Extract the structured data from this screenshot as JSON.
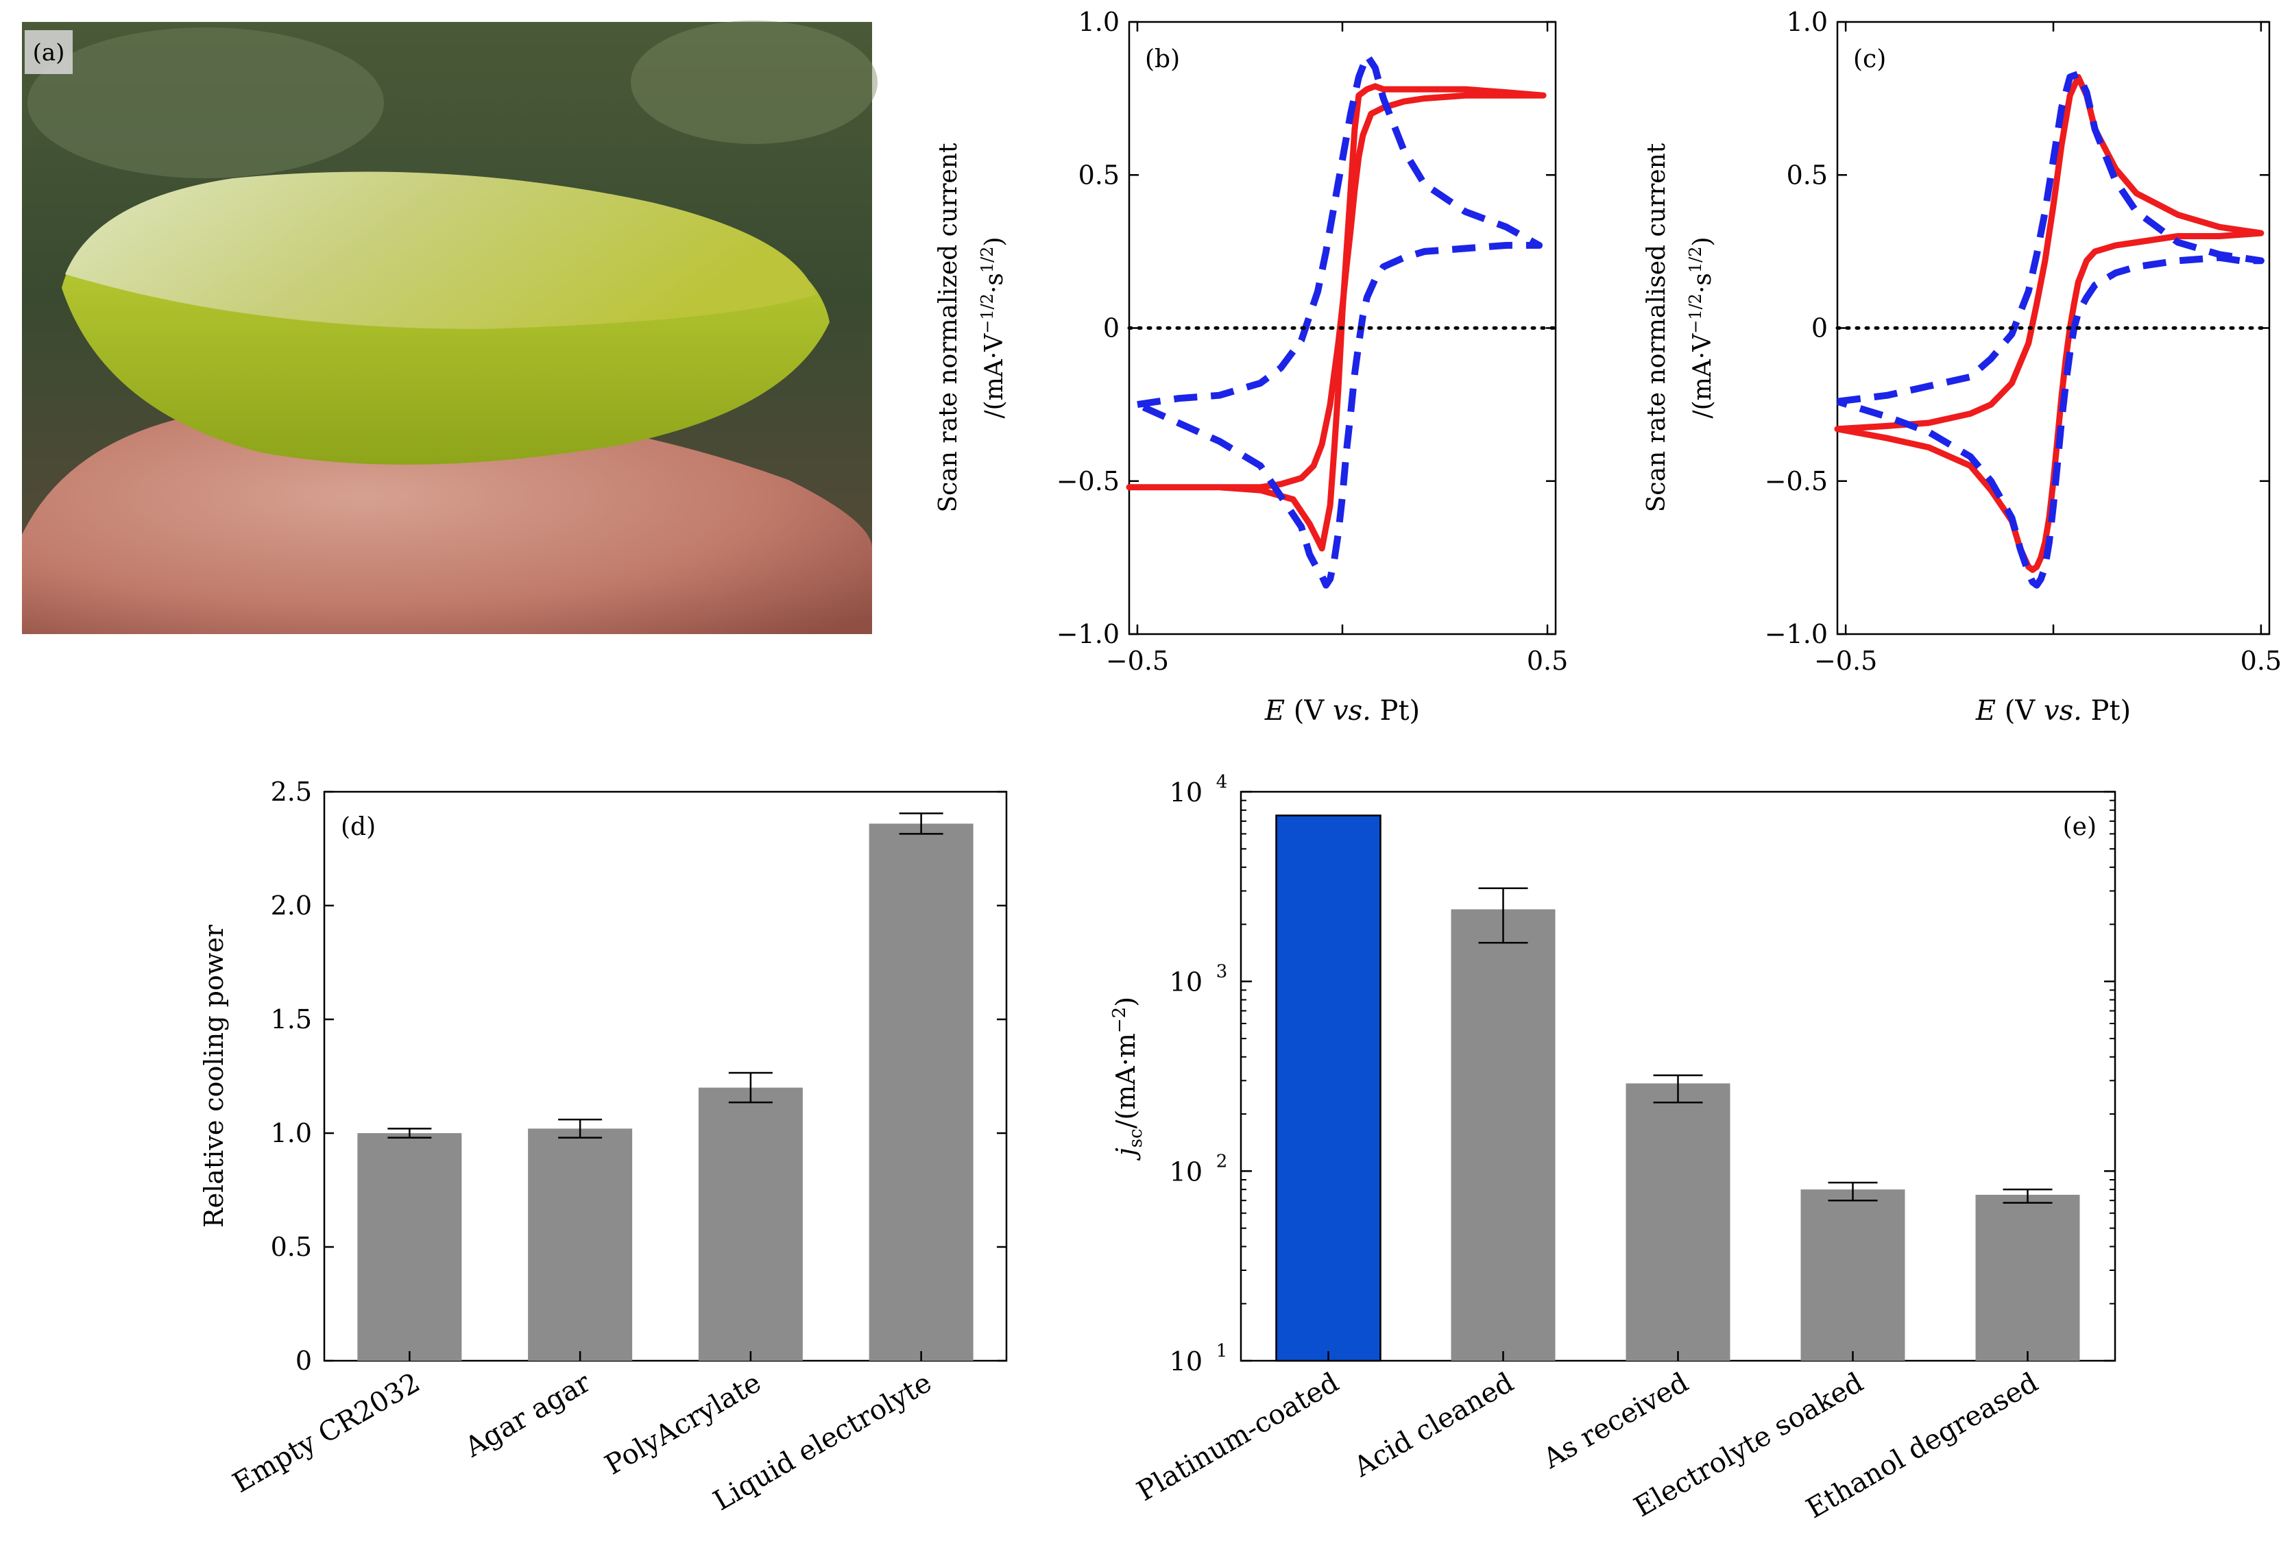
{
  "figure": {
    "panel_a": {
      "label": "(a)",
      "description": "photograph of a yellow-green gel electrolyte disc on a fingertip"
    },
    "colors": {
      "red": "#ee1c1c",
      "blue": "#1c24e8",
      "gray": "#8c8c8c",
      "platinum": "#0a4fd0"
    }
  },
  "chart_data": [
    {
      "panel": "(b)",
      "type": "line",
      "ylabel_line1": "Scan rate normalized current",
      "ylabel_line2": "/(mA·V",
      "ylabel_sup1": "−1/2",
      "ylabel_mid": "·s",
      "ylabel_sup2": "1/2",
      "ylabel_end": ")",
      "xlabel_var": "E",
      "xlabel_a": " (V ",
      "xlabel_vs": "vs.",
      "xlabel_b": " Pt)",
      "xlim": [
        -0.52,
        0.52
      ],
      "ylim": [
        -1.0,
        1.0
      ],
      "xticks": [
        -0.5,
        0,
        0.5
      ],
      "xticklabels": [
        "−0.5",
        "",
        "0.5"
      ],
      "yticks": [
        -1.0,
        -0.5,
        0,
        0.5,
        1.0
      ],
      "yticklabels": [
        "−1.0",
        "−0.5",
        "0",
        "0.5",
        "1.0"
      ],
      "series": [
        {
          "name": "red",
          "style": "solid",
          "color": "#ee1c1c",
          "x": [
            -0.52,
            -0.4,
            -0.3,
            -0.2,
            -0.15,
            -0.1,
            -0.07,
            -0.05,
            -0.03,
            -0.02,
            -0.01,
            0.0,
            0.01,
            0.02,
            0.03,
            0.04,
            0.05,
            0.07,
            0.1,
            0.15,
            0.2,
            0.3,
            0.4,
            0.49,
            0.4,
            0.3,
            0.2,
            0.15,
            0.12,
            0.1,
            0.08,
            0.06,
            0.04,
            0.03,
            0.02,
            0.01,
            0.0,
            -0.01,
            -0.02,
            -0.03,
            -0.05,
            -0.08,
            -0.12,
            -0.2,
            -0.3,
            -0.4,
            -0.52
          ],
          "y": [
            -0.52,
            -0.52,
            -0.52,
            -0.52,
            -0.51,
            -0.49,
            -0.45,
            -0.38,
            -0.25,
            -0.15,
            -0.05,
            0.07,
            0.2,
            0.32,
            0.45,
            0.56,
            0.63,
            0.7,
            0.72,
            0.74,
            0.75,
            0.76,
            0.76,
            0.76,
            0.77,
            0.78,
            0.78,
            0.78,
            0.78,
            0.78,
            0.79,
            0.78,
            0.76,
            0.65,
            0.45,
            0.25,
            0.05,
            -0.2,
            -0.4,
            -0.58,
            -0.72,
            -0.64,
            -0.56,
            -0.53,
            -0.52,
            -0.52,
            -0.52
          ]
        },
        {
          "name": "blue",
          "style": "dashed",
          "color": "#1c24e8",
          "x": [
            -0.5,
            -0.4,
            -0.3,
            -0.2,
            -0.15,
            -0.1,
            -0.06,
            -0.04,
            -0.02,
            0.0,
            0.02,
            0.04,
            0.06,
            0.08,
            0.1,
            0.15,
            0.2,
            0.3,
            0.4,
            0.48,
            0.4,
            0.3,
            0.2,
            0.15,
            0.1,
            0.08,
            0.06,
            0.05,
            0.04,
            0.03,
            0.02,
            0.01,
            0.0,
            -0.01,
            -0.02,
            -0.03,
            -0.04,
            -0.05,
            -0.06,
            -0.08,
            -0.1,
            -0.15,
            -0.2,
            -0.3,
            -0.4,
            -0.5
          ],
          "y": [
            -0.25,
            -0.23,
            -0.22,
            -0.18,
            -0.13,
            -0.04,
            0.12,
            0.25,
            0.4,
            0.55,
            0.7,
            0.82,
            0.89,
            0.85,
            0.75,
            0.58,
            0.47,
            0.38,
            0.33,
            0.27,
            0.27,
            0.26,
            0.25,
            0.23,
            0.2,
            0.16,
            0.1,
            0.04,
            -0.05,
            -0.15,
            -0.28,
            -0.4,
            -0.55,
            -0.67,
            -0.76,
            -0.82,
            -0.84,
            -0.81,
            -0.79,
            -0.74,
            -0.65,
            -0.55,
            -0.45,
            -0.37,
            -0.31,
            -0.25
          ]
        },
        {
          "name": "zero",
          "style": "dotted",
          "color": "#000000",
          "x": [
            -0.52,
            0.52
          ],
          "y": [
            0,
            0
          ]
        }
      ]
    },
    {
      "panel": "(c)",
      "type": "line",
      "ylabel_line1": "Scan rate normalised current",
      "ylabel_line2": "/(mA·V",
      "ylabel_sup1": "−1/2",
      "ylabel_mid": "·s",
      "ylabel_sup2": "1/2",
      "ylabel_end": ")",
      "xlabel_var": "E",
      "xlabel_a": " (V ",
      "xlabel_vs": "vs.",
      "xlabel_b": " Pt)",
      "xlim": [
        -0.52,
        0.52
      ],
      "ylim": [
        -1.0,
        1.0
      ],
      "xticks": [
        -0.5,
        0,
        0.5
      ],
      "xticklabels": [
        "−0.5",
        "",
        "0.5"
      ],
      "yticks": [
        -1.0,
        -0.5,
        0,
        0.5,
        1.0
      ],
      "yticklabels": [
        "−1.0",
        "−0.5",
        "0",
        "0.5",
        "1.0"
      ],
      "series": [
        {
          "name": "red",
          "style": "solid",
          "color": "#ee1c1c",
          "x": [
            -0.52,
            -0.4,
            -0.3,
            -0.2,
            -0.15,
            -0.1,
            -0.06,
            -0.04,
            -0.02,
            0.0,
            0.02,
            0.04,
            0.06,
            0.08,
            0.1,
            0.15,
            0.2,
            0.3,
            0.4,
            0.5,
            0.4,
            0.3,
            0.2,
            0.15,
            0.1,
            0.08,
            0.06,
            0.05,
            0.04,
            0.03,
            0.02,
            0.01,
            0.0,
            -0.01,
            -0.02,
            -0.03,
            -0.04,
            -0.05,
            -0.06,
            -0.08,
            -0.1,
            -0.15,
            -0.2,
            -0.3,
            -0.4,
            -0.52
          ],
          "y": [
            -0.33,
            -0.32,
            -0.31,
            -0.28,
            -0.25,
            -0.18,
            -0.05,
            0.08,
            0.22,
            0.4,
            0.6,
            0.76,
            0.82,
            0.76,
            0.65,
            0.52,
            0.44,
            0.37,
            0.33,
            0.31,
            0.3,
            0.3,
            0.28,
            0.27,
            0.25,
            0.22,
            0.15,
            0.08,
            0.0,
            -0.1,
            -0.22,
            -0.36,
            -0.5,
            -0.62,
            -0.7,
            -0.75,
            -0.78,
            -0.79,
            -0.78,
            -0.72,
            -0.63,
            -0.53,
            -0.45,
            -0.39,
            -0.36,
            -0.33
          ]
        },
        {
          "name": "blue",
          "style": "dashed",
          "color": "#1c24e8",
          "x": [
            -0.52,
            -0.4,
            -0.3,
            -0.2,
            -0.15,
            -0.1,
            -0.06,
            -0.04,
            -0.02,
            0.0,
            0.02,
            0.04,
            0.06,
            0.08,
            0.1,
            0.15,
            0.2,
            0.3,
            0.4,
            0.5,
            0.45,
            0.4,
            0.3,
            0.2,
            0.15,
            0.1,
            0.08,
            0.06,
            0.05,
            0.04,
            0.03,
            0.02,
            0.01,
            0.0,
            -0.01,
            -0.02,
            -0.03,
            -0.04,
            -0.05,
            -0.06,
            -0.08,
            -0.1,
            -0.15,
            -0.2,
            -0.3,
            -0.4,
            -0.52
          ],
          "y": [
            -0.24,
            -0.22,
            -0.19,
            -0.16,
            -0.1,
            -0.02,
            0.12,
            0.24,
            0.38,
            0.55,
            0.72,
            0.82,
            0.83,
            0.77,
            0.65,
            0.48,
            0.38,
            0.28,
            0.24,
            0.22,
            0.22,
            0.23,
            0.22,
            0.2,
            0.18,
            0.14,
            0.1,
            0.05,
            0.0,
            -0.08,
            -0.18,
            -0.3,
            -0.44,
            -0.58,
            -0.7,
            -0.78,
            -0.82,
            -0.84,
            -0.83,
            -0.8,
            -0.72,
            -0.62,
            -0.5,
            -0.42,
            -0.34,
            -0.29,
            -0.24
          ]
        },
        {
          "name": "zero",
          "style": "dotted",
          "color": "#000000",
          "x": [
            -0.52,
            0.52
          ],
          "y": [
            0,
            0
          ]
        }
      ]
    },
    {
      "panel": "(d)",
      "type": "bar",
      "ylabel": "Relative cooling power",
      "categories": [
        "Empty CR2032",
        "Agar agar",
        "PolyAcrylate",
        "Liquid electrolyte"
      ],
      "values": [
        1.0,
        1.02,
        1.2,
        2.36
      ],
      "errors": [
        0.02,
        0.04,
        0.065,
        0.045
      ],
      "ylim": [
        0,
        2.5
      ],
      "yticks": [
        0,
        0.5,
        1.0,
        1.5,
        2.0,
        2.5
      ],
      "yticklabels": [
        "0",
        "0.5",
        "1.0",
        "1.5",
        "2.0",
        "2.5"
      ]
    },
    {
      "panel": "(e)",
      "type": "bar",
      "yscale": "log",
      "ylabel_var": "j",
      "ylabel_sub": "sc",
      "ylabel_a": "/(mA·m",
      "ylabel_sup": "−2",
      "ylabel_b": ")",
      "categories": [
        "Platinum-coated",
        "Acid cleaned",
        "As received",
        "Electrolyte soaked",
        "Ethanol degreased"
      ],
      "values": [
        7500,
        2400,
        290,
        80,
        75
      ],
      "err_low": [
        0,
        1600,
        230,
        70,
        68
      ],
      "err_high": [
        0,
        3100,
        320,
        87,
        80
      ],
      "bar_colors": [
        "#0a4fd0",
        "#8c8c8c",
        "#8c8c8c",
        "#8c8c8c",
        "#8c8c8c"
      ],
      "ylim": [
        10,
        10000
      ],
      "ytick_values": [
        10,
        100,
        1000,
        10000
      ],
      "ytick_base": "10",
      "ytick_exps": [
        "1",
        "2",
        "3",
        "4"
      ]
    }
  ]
}
